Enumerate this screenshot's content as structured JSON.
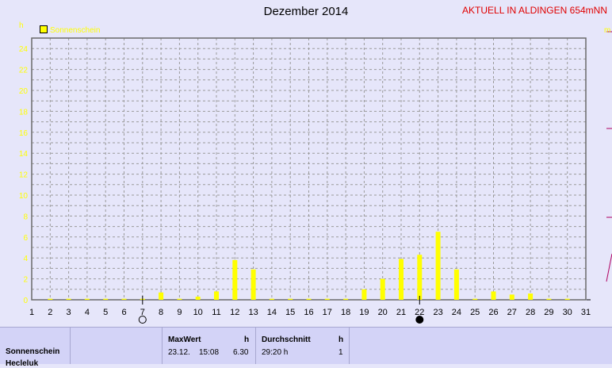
{
  "title": "Dezember 2014",
  "station": "AKTUELL IN ALDINGEN 654mNN",
  "legend_label": "Sonnenschein",
  "unit_label": "h",
  "right_unit_label": "m",
  "colors": {
    "bar": "#ffff00",
    "grid": "#9a9a9a",
    "station": "#e00000",
    "background": "#e6e6fa"
  },
  "markers": [
    {
      "day": 7,
      "symbol": "full-moon-icon"
    },
    {
      "day": 22,
      "symbol": "new-moon-icon"
    }
  ],
  "chart_data": {
    "type": "bar",
    "title": "Dezember 2014",
    "ylabel": "h",
    "ylim": [
      0,
      25
    ],
    "yticks": [
      0,
      2,
      4,
      6,
      8,
      10,
      12,
      14,
      16,
      18,
      20,
      22,
      24
    ],
    "categories": [
      "1",
      "2",
      "3",
      "4",
      "5",
      "6",
      "7",
      "8",
      "9",
      "10",
      "11",
      "12",
      "13",
      "14",
      "15",
      "16",
      "17",
      "18",
      "19",
      "20",
      "21",
      "22",
      "23",
      "24",
      "25",
      "26",
      "27",
      "28",
      "29",
      "30",
      "31"
    ],
    "series": [
      {
        "name": "Sonnenschein",
        "values": [
          0,
          0.1,
          0.1,
          0.1,
          0.1,
          0.1,
          0.1,
          0.7,
          0.1,
          0.3,
          0.8,
          3.8,
          2.9,
          0.1,
          0.1,
          0.1,
          0.1,
          0.1,
          1.0,
          2.0,
          3.9,
          4.3,
          6.5,
          2.9,
          0.1,
          0.8,
          0.5,
          0.6,
          0.1,
          0.1,
          0
        ]
      }
    ],
    "grid": true,
    "legend_position": "top-left"
  },
  "table": {
    "row_label": "Sonnenschein",
    "row_label2": "Hecleluk",
    "max_header": "MaxWert",
    "max_unit": "h",
    "max_date": "23.12.",
    "max_time": "15:08",
    "max_value": "6.30",
    "avg_header": "Durchschnitt",
    "avg_unit": "h",
    "avg_value": "29:20 h",
    "avg_count": "1"
  }
}
